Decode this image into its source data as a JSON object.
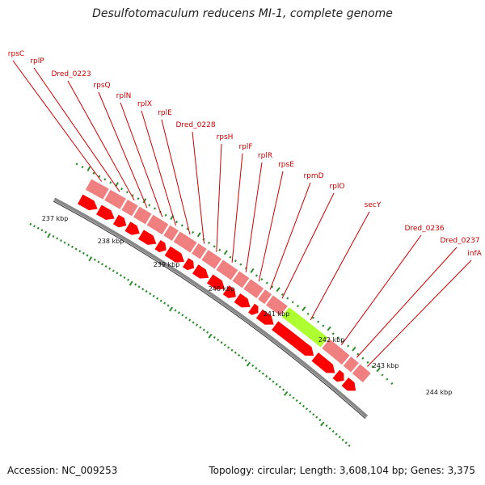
{
  "title": "Desulfotomaculum reducens MI-1, complete genome",
  "footer": {
    "accession": "Accession: NC_009253",
    "stats": "Topology: circular; Length: 3,608,104 bp; Genes: 3,375"
  },
  "colors": {
    "gene": "#ff0000",
    "gene_row": "#f08080",
    "highlight": "#adff2f",
    "label": "#cc0000",
    "tick": "#2e8b2e",
    "backbone": "#888888"
  },
  "genes": [
    {
      "name": "rpsC"
    },
    {
      "name": "rplP"
    },
    {
      "name": "Dred_0223"
    },
    {
      "name": "rpsQ"
    },
    {
      "name": "rplN"
    },
    {
      "name": "rplX"
    },
    {
      "name": "rplE"
    },
    {
      "name": "Dred_0228"
    },
    {
      "name": "rpsH"
    },
    {
      "name": "rplF"
    },
    {
      "name": "rplR"
    },
    {
      "name": "rpsE"
    },
    {
      "name": "rpmD"
    },
    {
      "name": "rplO"
    },
    {
      "name": "secY",
      "highlight": true
    },
    {
      "name": "Dred_0236"
    },
    {
      "name": "Dred_0237"
    },
    {
      "name": "infA"
    }
  ],
  "scale_labels": [
    "237 kbp",
    "238 kbp",
    "239 kbp",
    "240 kbp",
    "241 kbp",
    "242 kbp",
    "243 kbp",
    "244 kbp"
  ]
}
